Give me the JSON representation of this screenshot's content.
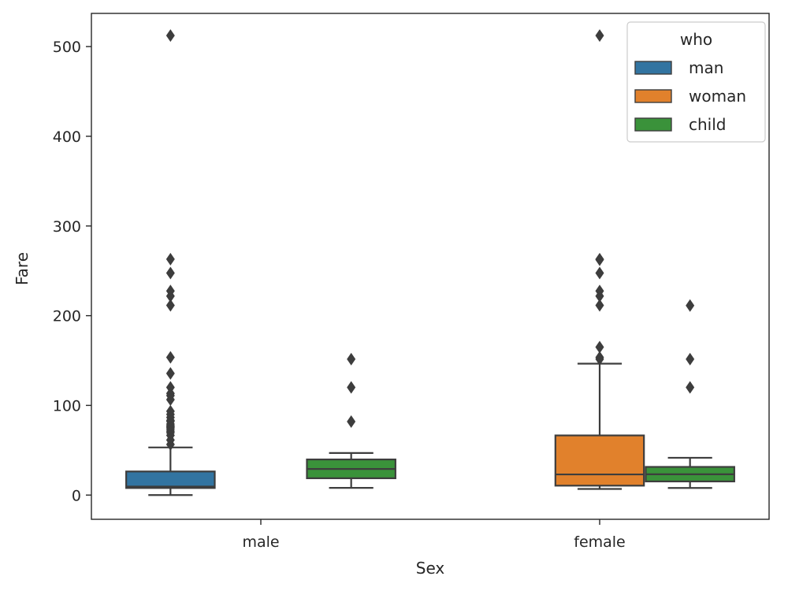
{
  "chart_data": {
    "type": "box",
    "title": "",
    "xlabel": "Sex",
    "ylabel": "Fare",
    "categories": [
      "male",
      "female"
    ],
    "yticks": [
      0,
      100,
      200,
      300,
      400,
      500
    ],
    "ylim": [
      -27,
      537
    ],
    "grid": false,
    "legend": {
      "title": "who",
      "position": "top-right"
    },
    "series": [
      {
        "name": "man",
        "color": "#3274a1",
        "boxes": [
          {
            "category": "male",
            "whislo": 0,
            "q1": 7.9,
            "med": 9.5,
            "q3": 26.3,
            "whishi": 53.1,
            "fliers": [
              512.3,
              263,
              247.5,
              227.5,
              221.8,
              211.5,
              153.5,
              135.6,
              120,
              113.3,
              110.9,
              106.4,
              93.5,
              90,
              86.5,
              83.2,
              82.2,
              79.2,
              77.3,
              76.7,
              75.2,
              73.5,
              71.3,
              69.5,
              66.6,
              61.4,
              56.5
            ]
          },
          {
            "category": "female",
            "empty": true
          }
        ]
      },
      {
        "name": "woman",
        "color": "#e1812c",
        "boxes": [
          {
            "category": "male",
            "empty": true
          },
          {
            "category": "female",
            "whislo": 6.8,
            "q1": 10.5,
            "med": 23,
            "q3": 66.5,
            "whishi": 146.5,
            "fliers": [
              512.3,
              263,
              262.4,
              247.5,
              227.5,
              221.8,
              211.5,
              164.9,
              153.5,
              151.6
            ]
          }
        ]
      },
      {
        "name": "child",
        "color": "#3a923a",
        "boxes": [
          {
            "category": "male",
            "whislo": 8.05,
            "q1": 18.75,
            "med": 29.1,
            "q3": 39.7,
            "whishi": 46.9,
            "fliers": [
              151.6,
              120,
              81.9
            ]
          },
          {
            "category": "female",
            "whislo": 7.9,
            "q1": 15.2,
            "med": 23.2,
            "q3": 31.4,
            "whishi": 41.6,
            "fliers": [
              211.3,
              151.6,
              120
            ]
          }
        ]
      }
    ]
  }
}
